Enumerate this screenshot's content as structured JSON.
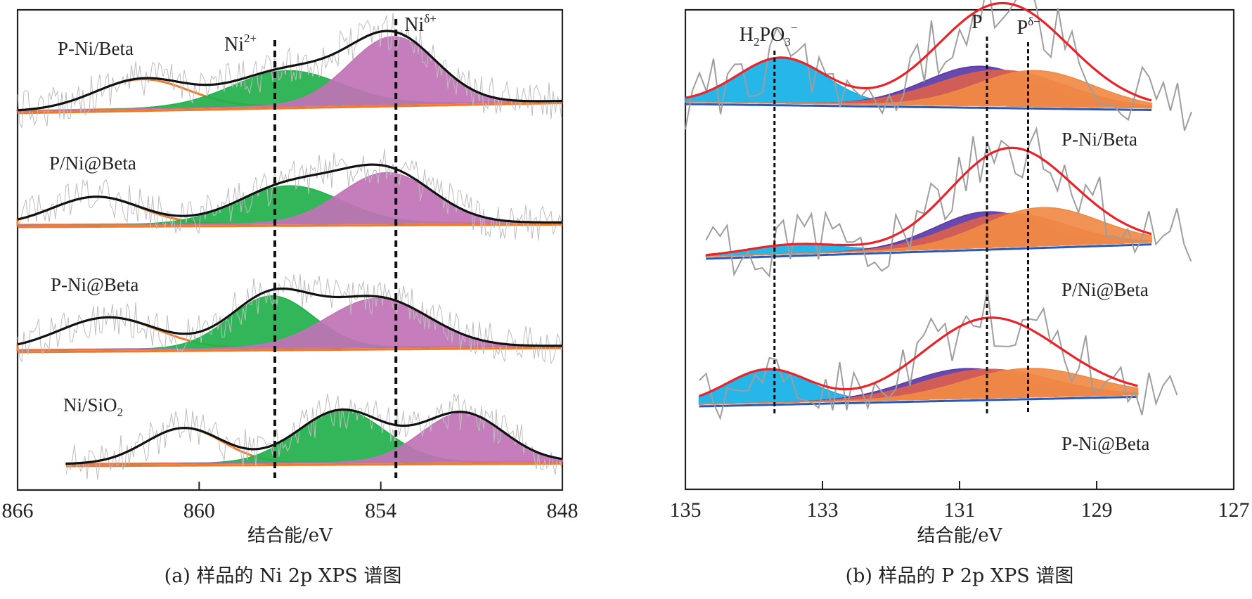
{
  "chart_data": [
    {
      "id": "a",
      "type": "line",
      "title": "",
      "caption": "(a) 样品的 Ni 2p XPS 谱图",
      "xlabel": "结合能/eV",
      "ylabel": "",
      "xlim": [
        866,
        848
      ],
      "x_reversed": true,
      "xticks": [
        866,
        860,
        854,
        848
      ],
      "xtick_labels": [
        "866",
        "860",
        "854",
        "848"
      ],
      "grid": false,
      "reference_lines": [
        {
          "label": "Ni2+",
          "label_main": "Ni",
          "label_sup": "2+",
          "x": 857.5
        },
        {
          "label": "Niδ+",
          "label_main": "Ni",
          "label_sup": "δ+",
          "x": 853.5
        }
      ],
      "component_colors": {
        "satellite": "#f07a2a",
        "Ni2+": "#22b04b",
        "Niδ+": "#c073b5",
        "envelope": "#111111",
        "raw": "#bdbdbd"
      },
      "series": [
        {
          "name": "P-Ni/Beta",
          "x_range": [
            866,
            848
          ],
          "baseline": [
            0.0,
            0.12
          ],
          "components": [
            {
              "name": "satellite",
              "center": 861.9,
              "height": 0.35,
              "fwhm": 3.6
            },
            {
              "name": "Ni2+",
              "center": 857.1,
              "height": 0.42,
              "fwhm": 4.2
            },
            {
              "name": "Niδ+",
              "center": 853.6,
              "height": 0.8,
              "fwhm": 3.4
            }
          ]
        },
        {
          "name": "P/Ni@Beta",
          "x_range": [
            866,
            848
          ],
          "baseline": [
            0.0,
            0.03
          ],
          "components": [
            {
              "name": "satellite",
              "center": 863.4,
              "height": 0.33,
              "fwhm": 3.4
            },
            {
              "name": "Ni2+",
              "center": 857.0,
              "height": 0.45,
              "fwhm": 4.0
            },
            {
              "name": "Niδ+",
              "center": 853.8,
              "height": 0.6,
              "fwhm": 3.6
            }
          ]
        },
        {
          "name": "P-Ni@Beta",
          "x_range": [
            866,
            848
          ],
          "baseline": [
            0.0,
            0.05
          ],
          "components": [
            {
              "name": "satellite",
              "center": 863.0,
              "height": 0.38,
              "fwhm": 3.8
            },
            {
              "name": "Ni2+",
              "center": 857.6,
              "height": 0.62,
              "fwhm": 3.2
            },
            {
              "name": "Niδ+",
              "center": 854.1,
              "height": 0.58,
              "fwhm": 4.0
            }
          ]
        },
        {
          "name": "Ni/SiO2",
          "label_main": "Ni/SiO",
          "label_sub": "2",
          "x_range": [
            864.4,
            848
          ],
          "baseline": [
            0.0,
            0.03
          ],
          "components": [
            {
              "name": "satellite",
              "center": 860.5,
              "height": 0.42,
              "fwhm": 3.0
            },
            {
              "name": "Ni2+",
              "center": 855.3,
              "height": 0.62,
              "fwhm": 3.4
            },
            {
              "name": "Niδ+",
              "center": 851.3,
              "height": 0.58,
              "fwhm": 3.2
            }
          ]
        }
      ]
    },
    {
      "id": "b",
      "type": "line",
      "title": "",
      "caption": "(b) 样品的 P 2p XPS 谱图",
      "xlabel": "结合能/eV",
      "ylabel": "",
      "xlim": [
        135,
        127
      ],
      "x_reversed": true,
      "xticks": [
        135,
        133,
        131,
        129,
        127
      ],
      "xtick_labels": [
        "135",
        "133",
        "131",
        "129",
        "127"
      ],
      "grid": false,
      "reference_lines": [
        {
          "label": "H2PO3-",
          "x": 133.7
        },
        {
          "label": "P",
          "x": 130.6
        },
        {
          "label": "Pδ-",
          "x": 130.0
        }
      ],
      "component_colors": {
        "H2PO3-": "#13b0e6",
        "P": "#5b3aa6",
        "Pmid": "#d9604e",
        "Pδ-": "#f08a45",
        "envelope": "#e8242a",
        "raw": "#9e9e9e"
      },
      "series": [
        {
          "name": "P-Ni/Beta",
          "x_range": [
            135,
            128.2
          ],
          "baseline": [
            0.0,
            -0.05
          ],
          "components": [
            {
              "name": "H2PO3-",
              "center": 133.6,
              "height": 0.38,
              "fwhm": 1.5
            },
            {
              "name": "P",
              "center": 130.7,
              "height": 0.33,
              "fwhm": 1.9
            },
            {
              "name": "Pmid",
              "center": 130.4,
              "height": 0.3,
              "fwhm": 2.2
            },
            {
              "name": "Pδ-",
              "center": 129.9,
              "height": 0.3,
              "fwhm": 2.0
            }
          ]
        },
        {
          "name": "P/Ni@Beta",
          "x_range": [
            134.7,
            128.2
          ],
          "baseline": [
            0.0,
            0.12
          ],
          "components": [
            {
              "name": "H2PO3-",
              "center": 133.4,
              "height": 0.08,
              "fwhm": 1.6
            },
            {
              "name": "P",
              "center": 130.6,
              "height": 0.3,
              "fwhm": 1.8
            },
            {
              "name": "Pmid",
              "center": 130.3,
              "height": 0.28,
              "fwhm": 2.0
            },
            {
              "name": "Pδ-",
              "center": 129.8,
              "height": 0.32,
              "fwhm": 2.0
            }
          ]
        },
        {
          "name": "P-Ni@Beta",
          "x_range": [
            134.8,
            128.4
          ],
          "baseline": [
            0.0,
            0.08
          ],
          "components": [
            {
              "name": "H2PO3-",
              "center": 133.8,
              "height": 0.28,
              "fwhm": 1.4
            },
            {
              "name": "P",
              "center": 130.9,
              "height": 0.25,
              "fwhm": 2.0
            },
            {
              "name": "Pmid",
              "center": 130.6,
              "height": 0.24,
              "fwhm": 2.2
            },
            {
              "name": "Pδ-",
              "center": 130.0,
              "height": 0.24,
              "fwhm": 2.2
            }
          ]
        }
      ]
    }
  ]
}
